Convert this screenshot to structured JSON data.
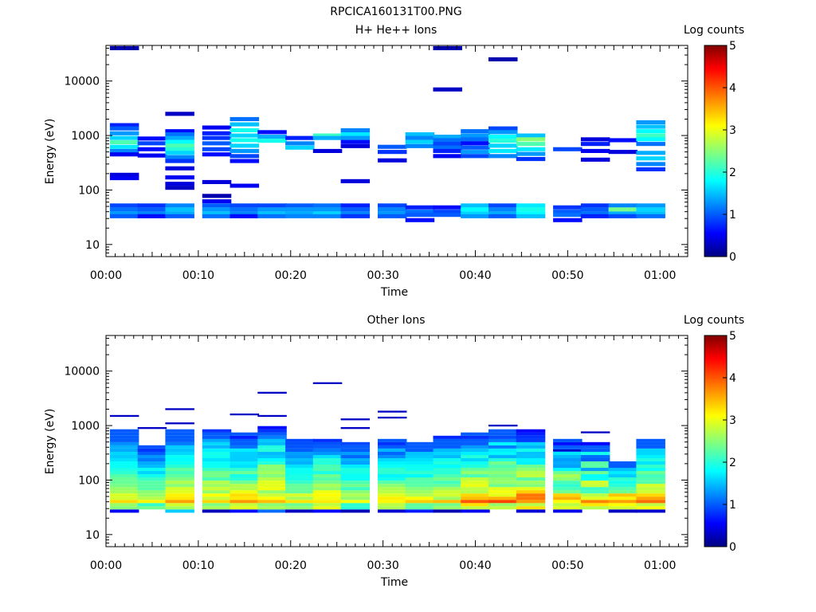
{
  "figure_title": "RPCICA160131T00.PNG",
  "colors": {
    "colormap": [
      "#000080",
      "#0000ff",
      "#00ffff",
      "#ffff00",
      "#ff0000",
      "#800000"
    ],
    "axes": "#000000",
    "background": "#ffffff"
  },
  "chart_data": [
    {
      "type": "heatmap",
      "title": "H+ He++ Ions",
      "xlabel": "Time",
      "ylabel": "Energy (eV)",
      "x_scale": "time",
      "y_scale": "log",
      "xlim": [
        "00:00",
        "01:03"
      ],
      "ylim": [
        6,
        45000
      ],
      "x_ticks": [
        "00:00",
        "00:10",
        "00:20",
        "00:30",
        "00:40",
        "00:50",
        "01:00"
      ],
      "y_ticks": [
        "10",
        "100",
        "1000",
        "10000"
      ],
      "colorbar": {
        "label": "Log counts",
        "range": [
          0,
          5
        ],
        "ticks": [
          "0",
          "1",
          "2",
          "3",
          "4",
          "5"
        ]
      },
      "grid": false,
      "columns": [
        "00:02",
        "00:05",
        "00:08",
        "00:12",
        "00:15",
        "00:18",
        "00:21",
        "00:24",
        "00:27",
        "00:31",
        "00:34",
        "00:37",
        "00:40",
        "00:43",
        "00:46",
        "00:50",
        "00:53",
        "00:56",
        "00:59"
      ],
      "cells": [
        [
          0,
          40000,
          0.2
        ],
        [
          0,
          1550,
          0.7
        ],
        [
          0,
          1350,
          1.0
        ],
        [
          0,
          1100,
          1.3
        ],
        [
          0,
          900,
          1.6
        ],
        [
          0,
          750,
          2.2
        ],
        [
          0,
          620,
          1.7
        ],
        [
          0,
          520,
          1.2
        ],
        [
          0,
          450,
          0.5
        ],
        [
          0,
          190,
          0.4
        ],
        [
          0,
          165,
          0.5
        ],
        [
          0,
          52,
          0.9
        ],
        [
          0,
          44,
          1.1
        ],
        [
          0,
          37,
          1.3
        ],
        [
          0,
          33,
          1.0
        ],
        [
          1,
          880,
          0.6
        ],
        [
          1,
          720,
          0.9
        ],
        [
          1,
          560,
          0.6
        ],
        [
          1,
          430,
          0.5
        ],
        [
          1,
          52,
          0.8
        ],
        [
          1,
          44,
          1.0
        ],
        [
          1,
          37,
          1.2
        ],
        [
          1,
          33,
          0.6
        ],
        [
          2,
          2500,
          0.3
        ],
        [
          2,
          1200,
          0.6
        ],
        [
          2,
          1050,
          1.1
        ],
        [
          2,
          900,
          1.4
        ],
        [
          2,
          760,
          1.8
        ],
        [
          2,
          650,
          2.2
        ],
        [
          2,
          560,
          2.0
        ],
        [
          2,
          480,
          1.6
        ],
        [
          2,
          400,
          1.2
        ],
        [
          2,
          340,
          0.8
        ],
        [
          2,
          250,
          0.4
        ],
        [
          2,
          170,
          0.5
        ],
        [
          2,
          130,
          0.4
        ],
        [
          2,
          110,
          0.3
        ],
        [
          2,
          52,
          1.2
        ],
        [
          2,
          44,
          1.5
        ],
        [
          2,
          37,
          1.4
        ],
        [
          2,
          33,
          1.0
        ],
        [
          3,
          1400,
          0.5
        ],
        [
          3,
          1100,
          0.7
        ],
        [
          3,
          900,
          0.8
        ],
        [
          3,
          720,
          1.0
        ],
        [
          3,
          560,
          0.9
        ],
        [
          3,
          450,
          0.6
        ],
        [
          3,
          140,
          0.4
        ],
        [
          3,
          78,
          0.2
        ],
        [
          3,
          62,
          0.5
        ],
        [
          3,
          52,
          1.0
        ],
        [
          3,
          44,
          1.3
        ],
        [
          3,
          37,
          1.5
        ],
        [
          3,
          33,
          1.1
        ],
        [
          4,
          2000,
          1.1
        ],
        [
          4,
          1600,
          1.5
        ],
        [
          4,
          1250,
          1.9
        ],
        [
          4,
          1000,
          1.6
        ],
        [
          4,
          820,
          1.9
        ],
        [
          4,
          650,
          1.6
        ],
        [
          4,
          520,
          1.3
        ],
        [
          4,
          420,
          0.9
        ],
        [
          4,
          340,
          0.6
        ],
        [
          4,
          120,
          0.5
        ],
        [
          4,
          52,
          0.9
        ],
        [
          4,
          44,
          1.1
        ],
        [
          4,
          37,
          1.2
        ],
        [
          4,
          33,
          0.6
        ],
        [
          5,
          1150,
          0.6
        ],
        [
          5,
          950,
          1.4
        ],
        [
          5,
          800,
          1.9
        ],
        [
          5,
          52,
          0.9
        ],
        [
          5,
          44,
          1.3
        ],
        [
          5,
          37,
          1.5
        ],
        [
          5,
          33,
          1.1
        ],
        [
          6,
          900,
          0.7
        ],
        [
          6,
          720,
          1.2
        ],
        [
          6,
          600,
          1.6
        ],
        [
          6,
          52,
          1.0
        ],
        [
          6,
          44,
          1.3
        ],
        [
          6,
          37,
          1.4
        ],
        [
          6,
          33,
          1.2
        ],
        [
          7,
          1000,
          2.1
        ],
        [
          7,
          900,
          1.4
        ],
        [
          7,
          520,
          0.4
        ],
        [
          7,
          52,
          1.1
        ],
        [
          7,
          44,
          1.3
        ],
        [
          7,
          37,
          1.6
        ],
        [
          7,
          33,
          1.2
        ],
        [
          8,
          1250,
          1.2
        ],
        [
          8,
          1050,
          1.7
        ],
        [
          8,
          900,
          1.3
        ],
        [
          8,
          760,
          0.6
        ],
        [
          8,
          640,
          0.4
        ],
        [
          8,
          145,
          0.4
        ],
        [
          8,
          52,
          0.7
        ],
        [
          8,
          44,
          1.0
        ],
        [
          8,
          37,
          1.2
        ],
        [
          8,
          33,
          0.8
        ],
        [
          9,
          620,
          1.0
        ],
        [
          9,
          500,
          0.8
        ],
        [
          9,
          350,
          0.4
        ],
        [
          9,
          52,
          0.9
        ],
        [
          9,
          44,
          1.2
        ],
        [
          9,
          37,
          1.3
        ],
        [
          9,
          33,
          1.0
        ],
        [
          10,
          1050,
          1.5
        ],
        [
          10,
          900,
          1.2
        ],
        [
          10,
          760,
          1.6
        ],
        [
          10,
          640,
          1.2
        ],
        [
          10,
          48,
          0.7
        ],
        [
          10,
          40,
          1.1
        ],
        [
          10,
          35,
          1.0
        ],
        [
          10,
          28,
          0.6
        ],
        [
          11,
          40000,
          0.2
        ],
        [
          11,
          7000,
          0.3
        ],
        [
          11,
          950,
          1.4
        ],
        [
          11,
          820,
          1.1
        ],
        [
          11,
          700,
          0.9
        ],
        [
          11,
          600,
          1.1
        ],
        [
          11,
          520,
          0.7
        ],
        [
          11,
          420,
          0.5
        ],
        [
          11,
          48,
          0.6
        ],
        [
          11,
          40,
          0.9
        ],
        [
          11,
          35,
          1.0
        ],
        [
          12,
          1200,
          1.1
        ],
        [
          12,
          1000,
          1.3
        ],
        [
          12,
          850,
          1.1
        ],
        [
          12,
          720,
          0.6
        ],
        [
          12,
          600,
          1.0
        ],
        [
          12,
          500,
          1.3
        ],
        [
          12,
          420,
          0.9
        ],
        [
          12,
          52,
          1.5
        ],
        [
          12,
          44,
          1.8
        ],
        [
          12,
          37,
          1.6
        ],
        [
          12,
          33,
          1.3
        ],
        [
          13,
          25000,
          0.2
        ],
        [
          13,
          1350,
          0.9
        ],
        [
          13,
          1150,
          1.3
        ],
        [
          13,
          950,
          1.8
        ],
        [
          13,
          800,
          2.0
        ],
        [
          13,
          650,
          1.6
        ],
        [
          13,
          520,
          1.7
        ],
        [
          13,
          420,
          1.2
        ],
        [
          13,
          52,
          0.9
        ],
        [
          13,
          44,
          1.2
        ],
        [
          13,
          37,
          1.4
        ],
        [
          13,
          33,
          1.0
        ],
        [
          14,
          1000,
          1.5
        ],
        [
          14,
          850,
          2.5
        ],
        [
          14,
          700,
          2.2
        ],
        [
          14,
          560,
          1.7
        ],
        [
          14,
          460,
          1.3
        ],
        [
          14,
          370,
          0.8
        ],
        [
          14,
          52,
          1.7
        ],
        [
          14,
          44,
          1.9
        ],
        [
          14,
          37,
          1.8
        ],
        [
          14,
          33,
          1.5
        ],
        [
          15,
          560,
          0.9
        ],
        [
          15,
          48,
          0.8
        ],
        [
          15,
          40,
          1.0
        ],
        [
          15,
          35,
          1.1
        ],
        [
          15,
          28,
          0.6
        ],
        [
          16,
          850,
          0.4
        ],
        [
          16,
          700,
          0.7
        ],
        [
          16,
          520,
          0.5
        ],
        [
          16,
          360,
          0.4
        ],
        [
          16,
          52,
          0.8
        ],
        [
          16,
          44,
          1.0
        ],
        [
          16,
          37,
          1.1
        ],
        [
          16,
          33,
          0.7
        ],
        [
          17,
          820,
          0.6
        ],
        [
          17,
          500,
          0.4
        ],
        [
          17,
          52,
          1.2
        ],
        [
          17,
          44,
          2.4
        ],
        [
          17,
          37,
          1.4
        ],
        [
          17,
          33,
          0.9
        ],
        [
          18,
          1750,
          1.3
        ],
        [
          18,
          1450,
          1.5
        ],
        [
          18,
          1200,
          1.8
        ],
        [
          18,
          1000,
          2.1
        ],
        [
          18,
          850,
          1.8
        ],
        [
          18,
          700,
          1.1
        ],
        [
          18,
          480,
          1.4
        ],
        [
          18,
          380,
          1.6
        ],
        [
          18,
          300,
          1.2
        ],
        [
          18,
          240,
          0.8
        ],
        [
          18,
          52,
          1.3
        ],
        [
          18,
          44,
          1.6
        ],
        [
          18,
          37,
          1.5
        ],
        [
          18,
          33,
          1.1
        ]
      ]
    },
    {
      "type": "heatmap",
      "title": "Other Ions",
      "xlabel": "Time",
      "ylabel": "Energy (eV)",
      "x_scale": "time",
      "y_scale": "log",
      "xlim": [
        "00:00",
        "01:03"
      ],
      "ylim": [
        6,
        45000
      ],
      "x_ticks": [
        "00:00",
        "00:10",
        "00:20",
        "00:30",
        "00:40",
        "00:50",
        "01:00"
      ],
      "y_ticks": [
        "10",
        "100",
        "1000",
        "10000"
      ],
      "colorbar": {
        "label": "Log counts",
        "range": [
          0,
          5
        ],
        "ticks": [
          "0",
          "1",
          "2",
          "3",
          "4",
          "5"
        ]
      },
      "grid": false,
      "columns": [
        "00:02",
        "00:05",
        "00:08",
        "00:12",
        "00:15",
        "00:18",
        "00:21",
        "00:24",
        "00:27",
        "00:31",
        "00:34",
        "00:37",
        "00:40",
        "00:43",
        "00:46",
        "00:50",
        "00:53",
        "00:56",
        "00:59"
      ],
      "profiles": [
        {
          "low_e": 27,
          "high_e": 850,
          "peak": 3.3,
          "noise": 0.1,
          "extra": [
            1500
          ]
        },
        {
          "low_e": 27,
          "high_e": 420,
          "peak": 3.0,
          "noise": 0.3,
          "extra": [
            900
          ],
          "bottom": 0.2
        },
        {
          "low_e": 27,
          "high_e": 850,
          "peak": 3.6,
          "noise": 0.2,
          "extra": [
            2000,
            1100
          ],
          "bottom": 1.5
        },
        {
          "low_e": 27,
          "high_e": 900,
          "peak": 3.5,
          "noise": 0.3,
          "extra": [],
          "bottom": 0.2
        },
        {
          "low_e": 27,
          "high_e": 700,
          "peak": 3.4,
          "noise": 0.4,
          "extra": [
            1600
          ],
          "bottom": 0.5
        },
        {
          "low_e": 27,
          "high_e": 1200,
          "peak": 3.6,
          "noise": 0.5,
          "extra": [
            4000,
            1500
          ],
          "bottom": 0.6
        },
        {
          "low_e": 27,
          "high_e": 550,
          "peak": 3.2,
          "noise": 0.2,
          "extra": [],
          "bottom": 0.4
        },
        {
          "low_e": 27,
          "high_e": 600,
          "peak": 3.6,
          "noise": 0.4,
          "extra": [
            6000
          ],
          "bottom": 0.5
        },
        {
          "low_e": 27,
          "high_e": 500,
          "peak": 3.0,
          "noise": 0.3,
          "extra": [
            1300,
            900
          ],
          "bottom": 0.2
        },
        {
          "low_e": 27,
          "high_e": 560,
          "peak": 3.3,
          "noise": 0.3,
          "extra": [
            1800,
            1400
          ],
          "bottom": 0.5
        },
        {
          "low_e": 27,
          "high_e": 500,
          "peak": 3.2,
          "noise": 0.3,
          "extra": [],
          "bottom": 0.8
        },
        {
          "low_e": 27,
          "high_e": 650,
          "peak": 3.3,
          "noise": 0.4,
          "extra": [],
          "bottom": 0.3
        },
        {
          "low_e": 27,
          "high_e": 750,
          "peak": 3.8,
          "noise": 0.3,
          "extra": [],
          "bottom": 0.3
        },
        {
          "low_e": 27,
          "high_e": 900,
          "peak": 3.7,
          "noise": 0.4,
          "extra": [
            1000
          ],
          "bottom": 0.3
        },
        {
          "low_e": 27,
          "high_e": 800,
          "peak": 3.9,
          "noise": 0.4,
          "extra": [],
          "bottom": 0.2
        },
        {
          "low_e": 27,
          "high_e": 550,
          "peak": 3.6,
          "noise": 0.5,
          "extra": [
            350
          ],
          "bottom": 0.5
        },
        {
          "low_e": 27,
          "high_e": 500,
          "peak": 3.6,
          "noise": 0.6,
          "extra": [
            750
          ],
          "bottom": 0.2
        },
        {
          "low_e": 27,
          "high_e": 230,
          "peak": 3.7,
          "noise": 0.2,
          "extra": [],
          "bottom": 0.4
        },
        {
          "low_e": 27,
          "high_e": 560,
          "peak": 3.8,
          "noise": 0.3,
          "extra": [],
          "bottom": 0.5
        }
      ]
    }
  ]
}
